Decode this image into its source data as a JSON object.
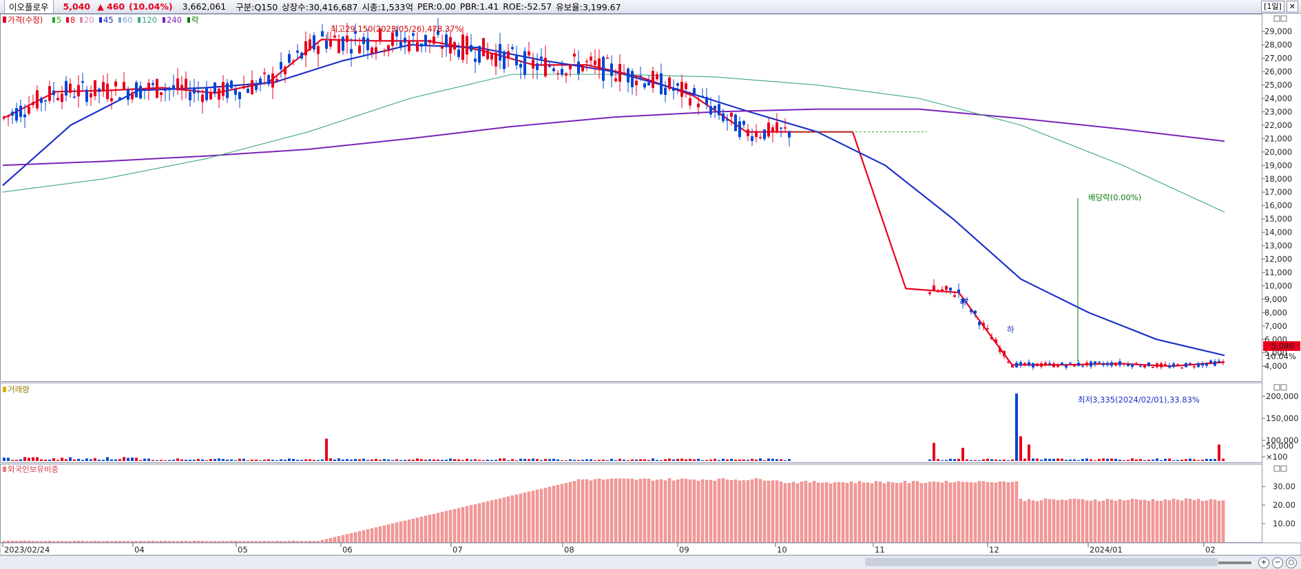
{
  "header": {
    "name": "이오플로우",
    "price": "5,040",
    "change": "▲ 460",
    "change_pct": "(10.04%)",
    "volume": "3,662,061",
    "segment": "구분:Q150",
    "shares": "상장수:30,416,687",
    "mcap": "시총:1,533억",
    "per": "PER:0.00",
    "pbr": "PBR:1.41",
    "roe": "ROE:-52.57",
    "float": "유보율:3,199.67",
    "period": "[1일]",
    "colors": {
      "up": "#e8001c",
      "down": "#0046d5"
    }
  },
  "legend": {
    "price": "가격(수정)",
    "ma": [
      {
        "label": "5",
        "color": "#1fa824"
      },
      {
        "label": "8",
        "color": "#e8001c"
      },
      {
        "label": "20",
        "color": "#d78bb5"
      },
      {
        "label": "45",
        "color": "#1c2fc8"
      },
      {
        "label": "60",
        "color": "#7fa0d0"
      },
      {
        "label": "120",
        "color": "#3aa77a"
      },
      {
        "label": "240",
        "color": "#7a22b8"
      },
      {
        "label": "락",
        "color": "#0a7a0a"
      }
    ]
  },
  "chart_data": [
    {
      "type": "line",
      "title": "가격(수정)",
      "ylim": [
        3000,
        30000
      ],
      "y_ticks": [
        "29,000",
        "28,000",
        "27,000",
        "26,000",
        "25,000",
        "24,000",
        "23,000",
        "22,000",
        "21,000",
        "20,000",
        "19,000",
        "18,000",
        "17,000",
        "16,000",
        "15,000",
        "14,000",
        "13,000",
        "12,000",
        "11,000",
        "10,000",
        "9,000",
        "8,000",
        "7,000",
        "6,000",
        "5,000",
        "4,000"
      ],
      "x_ticks": [
        "2023/02/24",
        "04",
        "05",
        "06",
        "07",
        "08",
        "09",
        "10",
        "11",
        "12",
        "2024/01",
        "02"
      ],
      "series": [
        {
          "name": "8",
          "values": [
            22500,
            24500,
            24600,
            24800,
            24400,
            25200,
            28400,
            28300,
            28300,
            27600,
            26500,
            26500,
            25600,
            24200,
            21500,
            21500,
            21500,
            9800,
            9500,
            4100,
            4100,
            4200,
            4000,
            4300
          ]
        },
        {
          "name": "45",
          "values": [
            17500,
            22000,
            24600,
            24800,
            25200,
            26800,
            28000,
            27800,
            26800,
            26000,
            24600,
            23000,
            21500,
            19000,
            15000,
            10500,
            8000,
            6000,
            4800
          ]
        },
        {
          "name": "240",
          "values": [
            19000,
            19300,
            19700,
            20200,
            21000,
            21900,
            22600,
            23000,
            23200,
            23200,
            22500,
            21700,
            20800
          ]
        },
        {
          "name": "120",
          "values": [
            17000,
            18000,
            19500,
            21500,
            24000,
            25800,
            25800,
            25600,
            25000,
            24000,
            22000,
            19000,
            15500
          ]
        }
      ],
      "annotations": {
        "high": "최고29,150(2023/05/26),478.37%",
        "low": "최저3,335(2024/02/01),33.83%",
        "dividend": "배당락(0.00%)",
        "limit_down": "하",
        "last_price": "5,040",
        "last_pct": "10.04%"
      }
    },
    {
      "type": "bar",
      "title": "거래량",
      "y_ticks": [
        "200,000",
        "150,000",
        "100,000",
        "50,000",
        "×100"
      ],
      "note": "values in ×100 shares",
      "peaks": [
        {
          "label": "2023/12",
          "value": 205000
        },
        {
          "label": "2024/02",
          "value": 50000
        }
      ]
    },
    {
      "type": "bar",
      "title": "외국인보유비중",
      "y_ticks": [
        "30.00",
        "20.00",
        "10.00"
      ],
      "ylim": [
        0,
        40
      ]
    }
  ]
}
